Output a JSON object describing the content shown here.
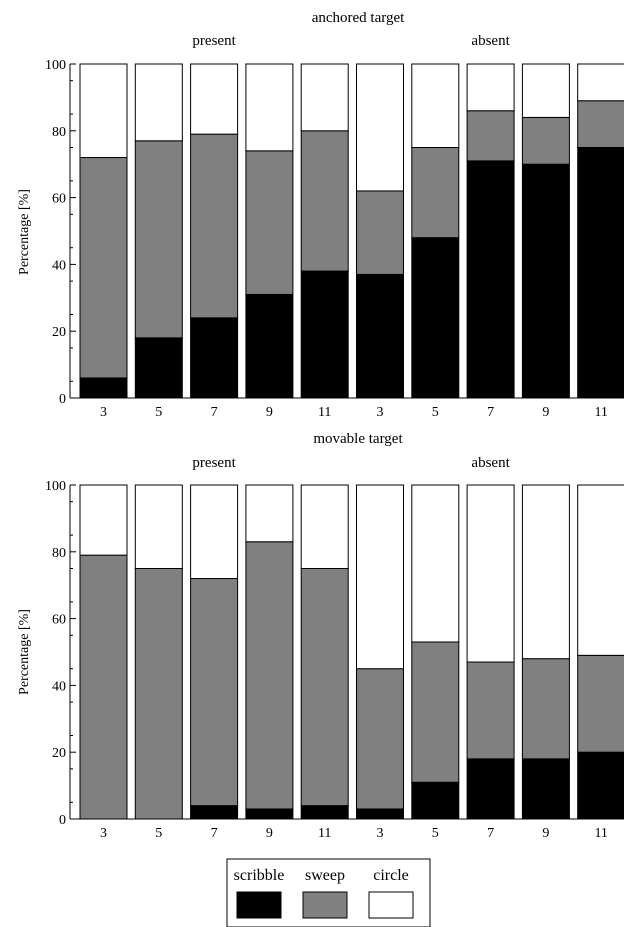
{
  "chart_data": [
    {
      "type": "bar",
      "stacked": true,
      "title": "anchored target",
      "group_labels": [
        "present",
        "absent"
      ],
      "categories": [
        "3",
        "5",
        "7",
        "9",
        "11",
        "3",
        "5",
        "7",
        "9",
        "11"
      ],
      "ylabel": "Percentage [%]",
      "ylim": [
        0,
        100
      ],
      "yticks": [
        "0",
        "20",
        "40",
        "60",
        "80",
        "100"
      ],
      "grid": false,
      "series": [
        {
          "name": "scribble",
          "values": [
            6,
            18,
            24,
            31,
            38,
            37,
            48,
            71,
            70,
            75
          ],
          "color": "#000000"
        },
        {
          "name": "sweep",
          "values": [
            66,
            59,
            55,
            43,
            42,
            25,
            27,
            15,
            14,
            14
          ],
          "color": "#808080"
        },
        {
          "name": "circle",
          "values": [
            28,
            23,
            21,
            26,
            20,
            38,
            25,
            14,
            16,
            11
          ],
          "color": "#ffffff"
        }
      ]
    },
    {
      "type": "bar",
      "stacked": true,
      "title": "movable target",
      "group_labels": [
        "present",
        "absent"
      ],
      "categories": [
        "3",
        "5",
        "7",
        "9",
        "11",
        "3",
        "5",
        "7",
        "9",
        "11"
      ],
      "ylabel": "Percentage [%]",
      "ylim": [
        0,
        100
      ],
      "yticks": [
        "0",
        "20",
        "40",
        "60",
        "80",
        "100"
      ],
      "grid": false,
      "series": [
        {
          "name": "scribble",
          "values": [
            0,
            0,
            4,
            3,
            4,
            3,
            11,
            18,
            18,
            20
          ],
          "color": "#000000"
        },
        {
          "name": "sweep",
          "values": [
            79,
            75,
            68,
            80,
            71,
            42,
            42,
            29,
            30,
            29
          ],
          "color": "#808080"
        },
        {
          "name": "circle",
          "values": [
            21,
            25,
            28,
            17,
            25,
            55,
            47,
            53,
            52,
            51
          ],
          "color": "#ffffff"
        }
      ]
    }
  ],
  "legend": {
    "placement": "bottom-center",
    "items": [
      {
        "label": "scribble",
        "color": "#000000"
      },
      {
        "label": "sweep",
        "color": "#808080"
      },
      {
        "label": "circle",
        "color": "#ffffff"
      }
    ]
  }
}
